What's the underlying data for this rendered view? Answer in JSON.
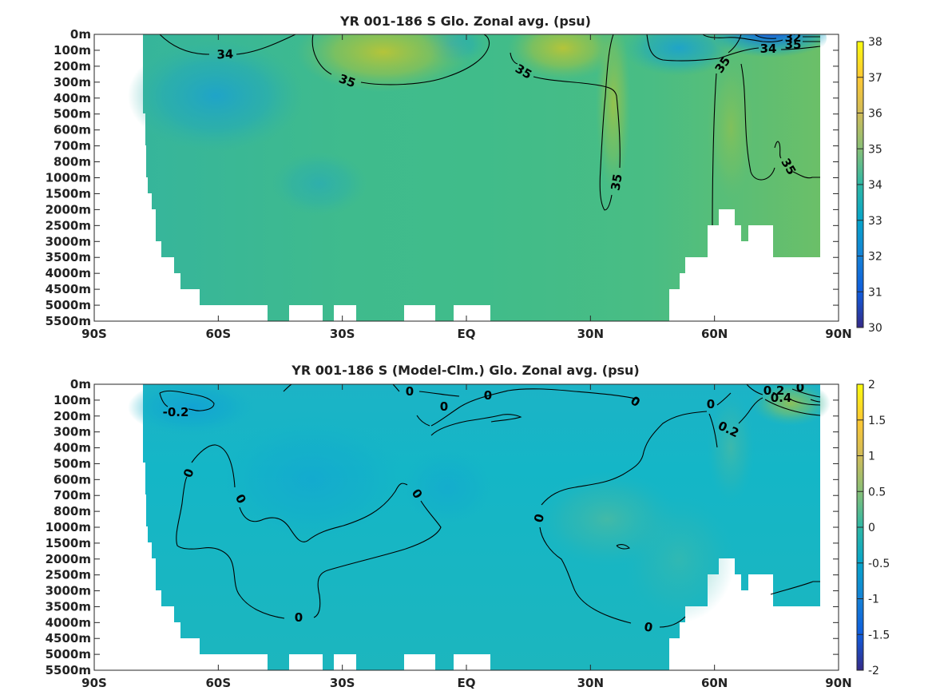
{
  "chart_data": [
    {
      "type": "heatmap",
      "title": "YR 001-186 S Glo. Zonal avg. (psu)",
      "y_categories": [
        "0m",
        "100m",
        "200m",
        "300m",
        "400m",
        "500m",
        "600m",
        "700m",
        "800m",
        "1000m",
        "1500m",
        "2000m",
        "2500m",
        "3000m",
        "3500m",
        "4000m",
        "4500m",
        "5000m",
        "5500m"
      ],
      "x_ticks": [
        "90S",
        "60S",
        "30S",
        "EQ",
        "30N",
        "60N",
        "90N"
      ],
      "x_tick_values": [
        -90,
        -60,
        -30,
        0,
        30,
        60,
        90
      ],
      "xlim": [
        -90,
        90
      ],
      "colorbar": {
        "ticks": [
          "30",
          "31",
          "32",
          "33",
          "34",
          "35",
          "36",
          "37",
          "38"
        ],
        "range": [
          30,
          38
        ],
        "colormap": "parula"
      },
      "contour_labels": [
        "34",
        "35",
        "35",
        "35",
        "35",
        "35",
        "34",
        "32",
        "35"
      ],
      "approx_values": {
        "background": 34.7,
        "subtropical_max_south": 35.8,
        "subtropical_max_north": 36.1,
        "arctic_surface_min": 31.5
      }
    },
    {
      "type": "heatmap",
      "title": "YR 001-186 S (Model-Clm.) Glo. Zonal avg. (psu)",
      "y_categories": [
        "0m",
        "100m",
        "200m",
        "300m",
        "400m",
        "500m",
        "600m",
        "700m",
        "800m",
        "1000m",
        "1500m",
        "2000m",
        "2500m",
        "3000m",
        "3500m",
        "4000m",
        "4500m",
        "5000m",
        "5500m"
      ],
      "x_ticks": [
        "90S",
        "60S",
        "30S",
        "EQ",
        "30N",
        "60N",
        "90N"
      ],
      "x_tick_values": [
        -90,
        -60,
        -30,
        0,
        30,
        60,
        90
      ],
      "xlim": [
        -90,
        90
      ],
      "colorbar": {
        "ticks": [
          "2",
          "1.5",
          "1",
          "0.5",
          "0",
          "-0.5",
          "-1",
          "-1.5",
          "-2"
        ],
        "range": [
          -2,
          2
        ],
        "colormap": "parula"
      },
      "contour_labels": [
        "-0.2",
        "0",
        "0",
        "0",
        "0",
        "0",
        "0",
        "0",
        "0",
        "0",
        "0",
        "0",
        "0.2",
        "0.2",
        "0.4",
        "0"
      ],
      "approx_values": {
        "background": -0.05,
        "arctic_max": 0.6,
        "southern_surface_min": -0.3
      }
    }
  ]
}
